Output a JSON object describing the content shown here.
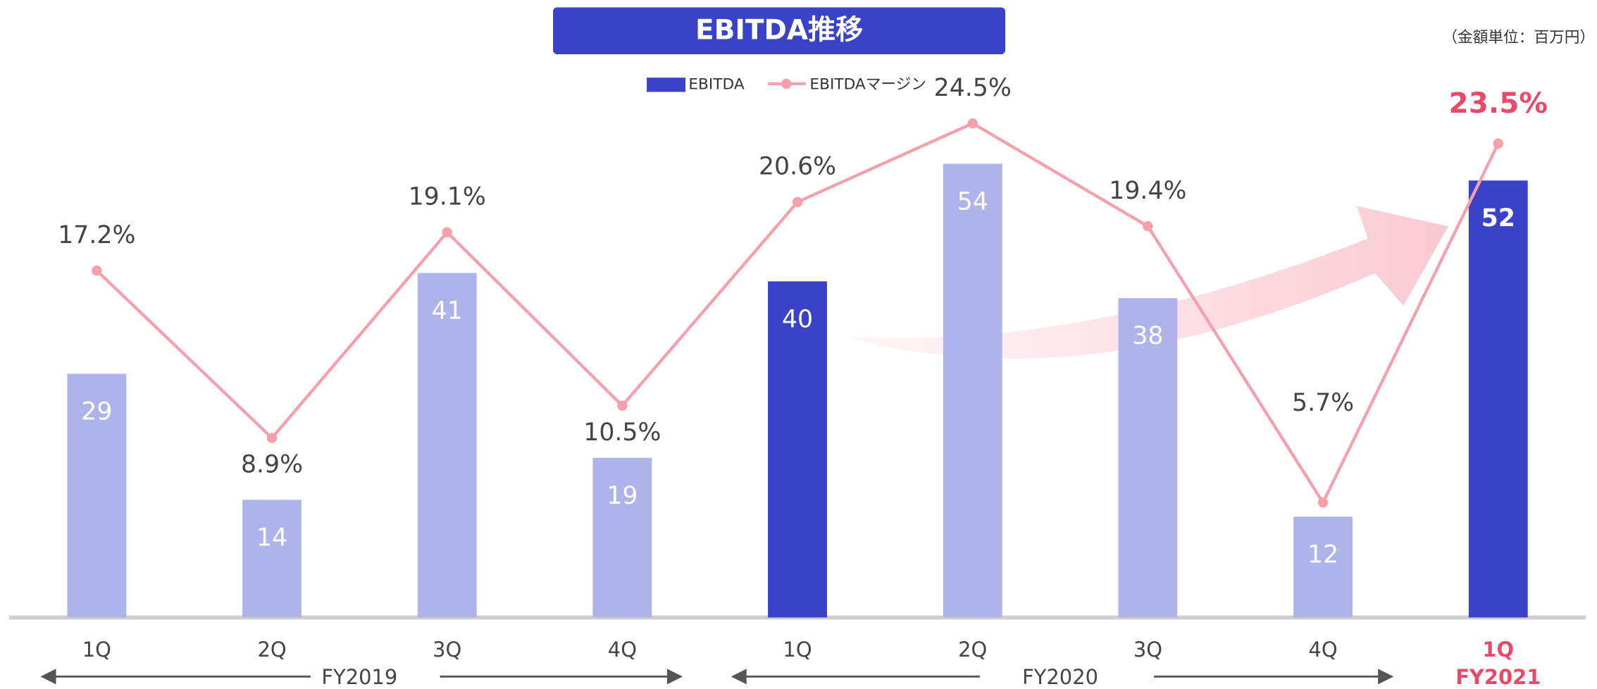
{
  "chart_data": {
    "type": "bar-line",
    "title": "EBITDA推移",
    "unit_note": "（金額単位：百万円）",
    "categories": [
      "1Q",
      "2Q",
      "3Q",
      "4Q",
      "1Q",
      "2Q",
      "3Q",
      "4Q",
      "1Q"
    ],
    "groups": [
      "FY2019",
      "FY2020",
      "FY2021"
    ],
    "series": [
      {
        "name": "EBITDA",
        "type": "bar",
        "color": "#3a43c8",
        "colors": [
          "#aeb4ea",
          "#aeb4ea",
          "#aeb4ea",
          "#aeb4ea",
          "#3a43c8",
          "#aeb4ea",
          "#aeb4ea",
          "#aeb4ea",
          "#3a43c8"
        ],
        "values": [
          29,
          14,
          41,
          19,
          40,
          54,
          38,
          12,
          52
        ]
      },
      {
        "name": "EBITDAマージン",
        "type": "line",
        "axis": "y2",
        "color": "#f4a0ad",
        "values": [
          17.2,
          8.9,
          19.1,
          10.5,
          20.6,
          24.5,
          19.4,
          5.7,
          23.5
        ],
        "value_labels": [
          "17.2%",
          "8.9%",
          "19.1%",
          "10.5%",
          "20.6%",
          "24.5%",
          "19.4%",
          "5.7%",
          "23.5%"
        ]
      }
    ],
    "ylim": [
      0,
      60
    ],
    "y2lim": [
      0,
      25
    ],
    "highlight_color": "#e84a6a"
  }
}
